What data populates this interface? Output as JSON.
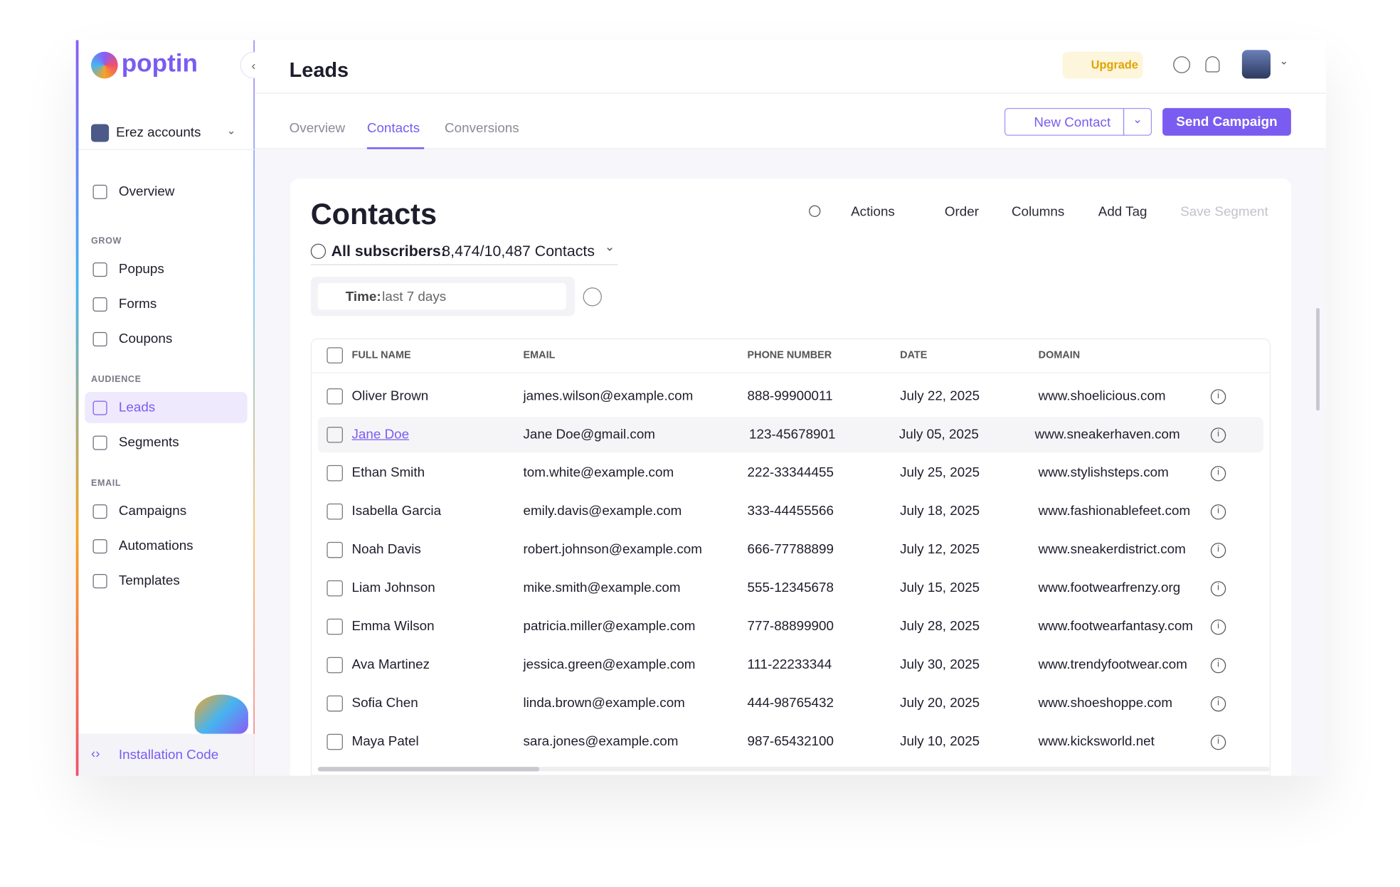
{
  "sidebar": {
    "brand": "poptin",
    "account": "Erez accounts",
    "top_items": [
      "Overview"
    ],
    "sections": [
      {
        "title": "GROW",
        "items": [
          "Popups",
          "Forms",
          "Coupons"
        ]
      },
      {
        "title": "AUDIENCE",
        "items": [
          "Leads",
          "Segments"
        ]
      },
      {
        "title": "EMAIL",
        "items": [
          "Campaigns",
          "Automations",
          "Templates"
        ]
      }
    ],
    "footer": "Installation Code"
  },
  "header": {
    "title": "Leads",
    "upgrade": "Upgrade",
    "tabs": [
      "Overview",
      "Contacts",
      "Conversions"
    ],
    "new_contact": "New Contact",
    "send_campaign": "Send Campaign"
  },
  "contacts": {
    "title": "Contacts",
    "toolbar": [
      "Actions",
      "Order",
      "Columns",
      "Add Tag",
      "Save Segment"
    ],
    "subscribers_label": "All subscribers:",
    "subscribers_count": "8,474/10,487 Contacts",
    "filter_label": "Time:",
    "filter_value": "last 7 days"
  },
  "table": {
    "columns": [
      "FULL NAME",
      "EMAIL",
      "PHONE NUMBER",
      "DATE",
      "DOMAIN"
    ],
    "rows": [
      [
        "Oliver Brown",
        "james.wilson@example.com",
        "888-99900011",
        "July 22, 2025",
        "www.shoelicious.com"
      ],
      [
        "Jane Doe",
        "Jane Doe@gmail.com",
        "123-45678901",
        "July 05, 2025",
        "www.sneakerhaven.com"
      ],
      [
        "Ethan Smith",
        "tom.white@example.com",
        "222-33344455",
        "July 25, 2025",
        "www.stylishsteps.com"
      ],
      [
        "Isabella Garcia",
        "emily.davis@example.com",
        "333-44455566",
        "July 18, 2025",
        "www.fashionablefeet.com"
      ],
      [
        "Noah Davis",
        "robert.johnson@example.com",
        "666-77788899",
        "July 12, 2025",
        "www.sneakerdistrict.com"
      ],
      [
        "Liam Johnson",
        "mike.smith@example.com",
        "555-12345678",
        "July 15, 2025",
        "www.footwearfrenzy.org"
      ],
      [
        "Emma Wilson",
        "patricia.miller@example.com",
        "777-88899900",
        "July 28, 2025",
        "www.footwearfantasy.com"
      ],
      [
        "Ava Martinez",
        "jessica.green@example.com",
        "111-22233344",
        "July 30, 2025",
        "www.trendyfootwear.com"
      ],
      [
        "Sofia Chen",
        "linda.brown@example.com",
        "444-98765432",
        "July 20, 2025",
        "www.shoeshoppe.com"
      ],
      [
        "Maya Patel",
        "sara.jones@example.com",
        "987-65432100",
        "July 10, 2025",
        "www.kicksworld.net"
      ]
    ]
  }
}
